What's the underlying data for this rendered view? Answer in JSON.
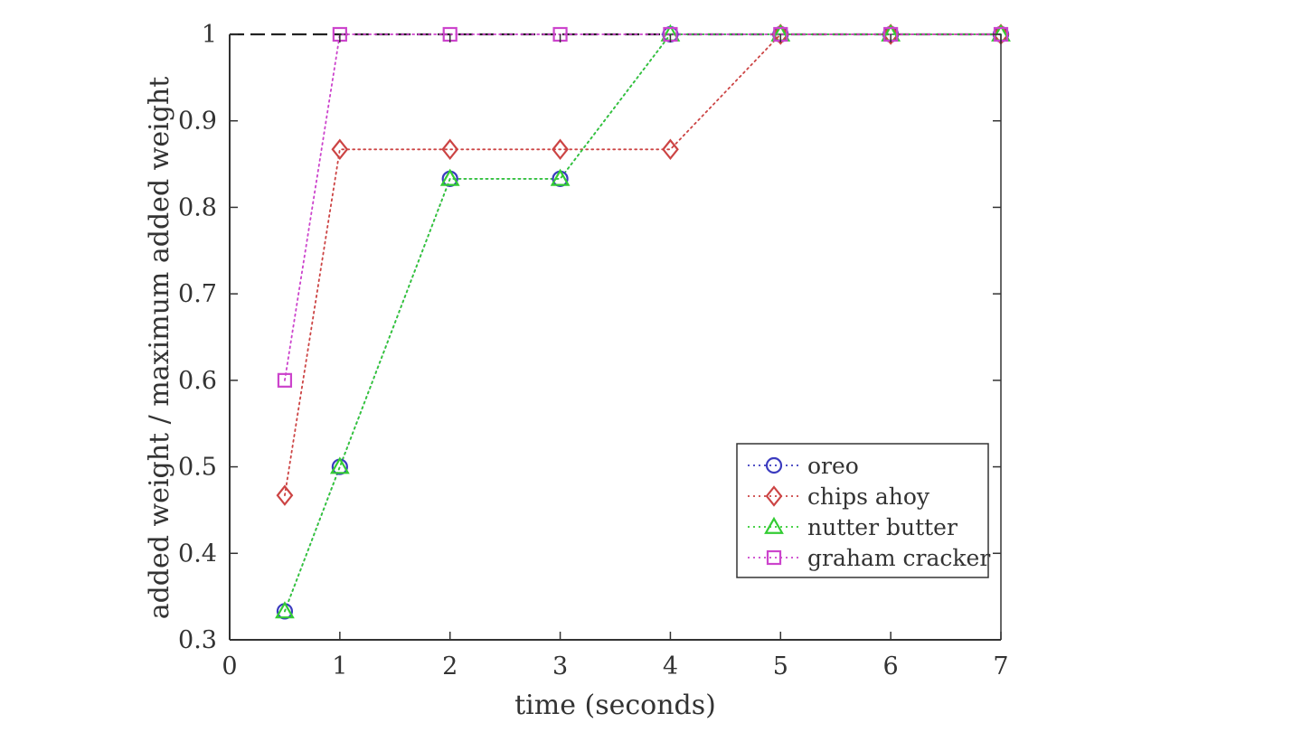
{
  "chart_data": {
    "type": "line",
    "title": "",
    "xlabel": "time (seconds)",
    "ylabel": "added weight / maximum added weight",
    "xlim": [
      0,
      7
    ],
    "ylim": [
      0.3,
      1
    ],
    "xticks": [
      "0",
      "1",
      "2",
      "3",
      "4",
      "5",
      "6",
      "7"
    ],
    "yticks": [
      "0.3",
      "0.4",
      "0.5",
      "0.6",
      "0.7",
      "0.8",
      "0.9",
      "1"
    ],
    "grid": false,
    "legend_position": "bottom-right",
    "reference_line": {
      "y": 1,
      "style": "dashed",
      "color": "#222222"
    },
    "series": [
      {
        "name": "oreo",
        "color": "#3b3bbf",
        "marker": "circle",
        "line_style": "dotted",
        "x": [
          0.5,
          1,
          2,
          3,
          4,
          5,
          6,
          7
        ],
        "y": [
          0.333,
          0.5,
          0.833,
          0.833,
          1,
          1,
          1,
          1
        ]
      },
      {
        "name": "chips ahoy",
        "color": "#cc4444",
        "marker": "diamond",
        "line_style": "dotted",
        "x": [
          0.5,
          1,
          2,
          3,
          4,
          5,
          6,
          7
        ],
        "y": [
          0.467,
          0.867,
          0.867,
          0.867,
          0.867,
          1,
          1,
          1
        ]
      },
      {
        "name": "nutter butter",
        "color": "#33cc33",
        "marker": "triangle",
        "line_style": "dotted",
        "x": [
          0.5,
          1,
          2,
          3,
          4,
          5,
          6,
          7
        ],
        "y": [
          0.333,
          0.5,
          0.833,
          0.833,
          1,
          1,
          1,
          1
        ]
      },
      {
        "name": "graham cracker",
        "color": "#cc44cc",
        "marker": "square",
        "line_style": "dotted",
        "x": [
          0.5,
          1,
          2,
          3,
          4,
          5,
          6,
          7
        ],
        "y": [
          0.6,
          1,
          1,
          1,
          1,
          1,
          1,
          1
        ]
      }
    ]
  }
}
